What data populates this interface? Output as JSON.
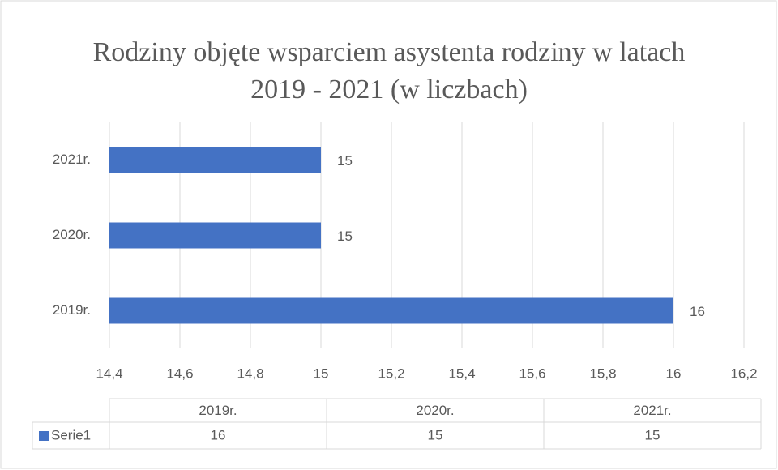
{
  "chart_data": {
    "type": "barh",
    "title": "Rodziny objęte wsparciem asystenta rodziny w latach 2019 - 2021 (w liczbach)",
    "categories": [
      "2019r.",
      "2020r.",
      "2021r."
    ],
    "series": [
      {
        "name": "Serie1",
        "color": "#4472c4",
        "values": [
          16,
          15,
          15
        ]
      }
    ],
    "xlim": [
      14.4,
      16.2
    ],
    "xticks": [
      {
        "value": 14.4,
        "label": "14,4"
      },
      {
        "value": 14.6,
        "label": "14,6"
      },
      {
        "value": 14.8,
        "label": "14,8"
      },
      15,
      {
        "value": 15.2,
        "label": "15,2"
      },
      {
        "value": 15.4,
        "label": "15,4"
      },
      {
        "value": 15.6,
        "label": "15,6"
      },
      {
        "value": 15.8,
        "label": "15,8"
      },
      16,
      {
        "value": 16.2,
        "label": "16,2"
      }
    ],
    "grid": true,
    "data_table": true
  }
}
